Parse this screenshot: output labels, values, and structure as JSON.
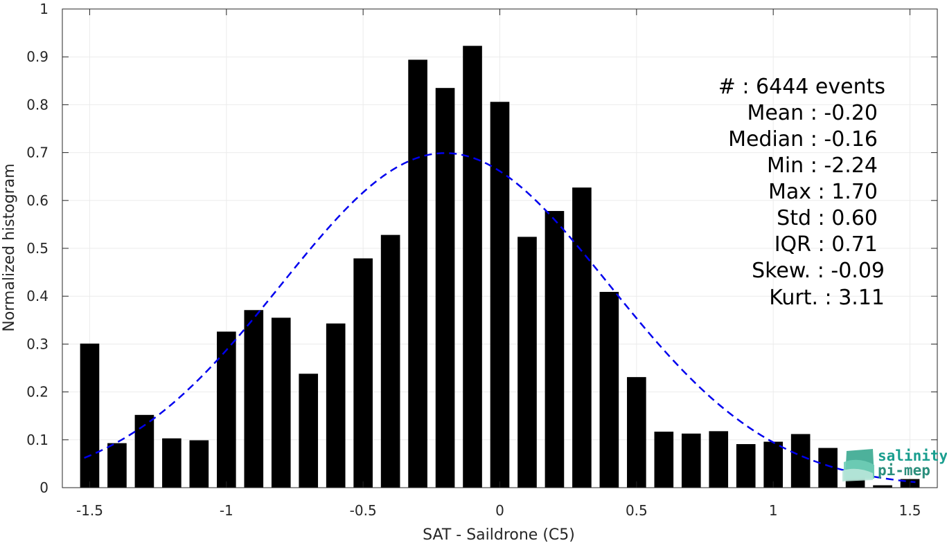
{
  "chart_data": {
    "type": "bar",
    "xlabel": "SAT - Saildrone (C5)",
    "ylabel": "Normalized histogram",
    "xlim": [
      -1.6,
      1.6
    ],
    "ylim": [
      0,
      1
    ],
    "grid": true,
    "xticks": [
      -1.5,
      -1,
      -0.5,
      0,
      0.5,
      1,
      1.5
    ],
    "xtick_labels": [
      "-1.5",
      "-1",
      "-0.5",
      "0",
      "0.5",
      "1",
      "1.5"
    ],
    "yticks": [
      0,
      0.1,
      0.2,
      0.3,
      0.4,
      0.5,
      0.6,
      0.7,
      0.8,
      0.9,
      1
    ],
    "ytick_labels": [
      "0",
      "0.1",
      "0.2",
      "0.3",
      "0.4",
      "0.5",
      "0.6",
      "0.7",
      "0.8",
      "0.9",
      "1"
    ],
    "bar_width": 0.07,
    "bars": {
      "x": [
        -1.5,
        -1.4,
        -1.3,
        -1.2,
        -1.1,
        -1.0,
        -0.9,
        -0.8,
        -0.7,
        -0.6,
        -0.5,
        -0.4,
        -0.3,
        -0.2,
        -0.1,
        0.0,
        0.1,
        0.2,
        0.3,
        0.4,
        0.5,
        0.6,
        0.7,
        0.8,
        0.9,
        1.0,
        1.1,
        1.2,
        1.3,
        1.4,
        1.5
      ],
      "values": [
        0.301,
        0.093,
        0.152,
        0.103,
        0.099,
        0.326,
        0.371,
        0.355,
        0.238,
        0.343,
        0.479,
        0.528,
        0.894,
        0.835,
        0.923,
        0.806,
        0.524,
        0.578,
        0.627,
        0.409,
        0.231,
        0.117,
        0.113,
        0.118,
        0.091,
        0.096,
        0.112,
        0.083,
        0.022,
        0.005,
        0.018
      ]
    },
    "fit_curve": {
      "style": "dashed",
      "color": "#0000ee",
      "mean": -0.2,
      "std": 0.6,
      "peak": 0.699,
      "x_range": [
        -1.52,
        1.52
      ]
    },
    "stats": [
      {
        "label": "#  : 6444 events",
        "align": "right"
      },
      {
        "label": "Mean : -0.20"
      },
      {
        "label": "Median : -0.16"
      },
      {
        "label": "Min : -2.24"
      },
      {
        "label": "Max : 1.70"
      },
      {
        "label": "Std : 0.60"
      },
      {
        "label": "IQR : 0.71"
      },
      {
        "label": "Skew. : -0.09"
      },
      {
        "label": "Kurt. : 3.11"
      }
    ]
  },
  "logo": {
    "line1": "salinity",
    "line2": "pi-mep",
    "color1": "#1a9e8f",
    "color2": "#2b8e7c"
  },
  "colors": {
    "bar": "#000000",
    "grid": "#ebebeb",
    "axis": "#262626"
  }
}
